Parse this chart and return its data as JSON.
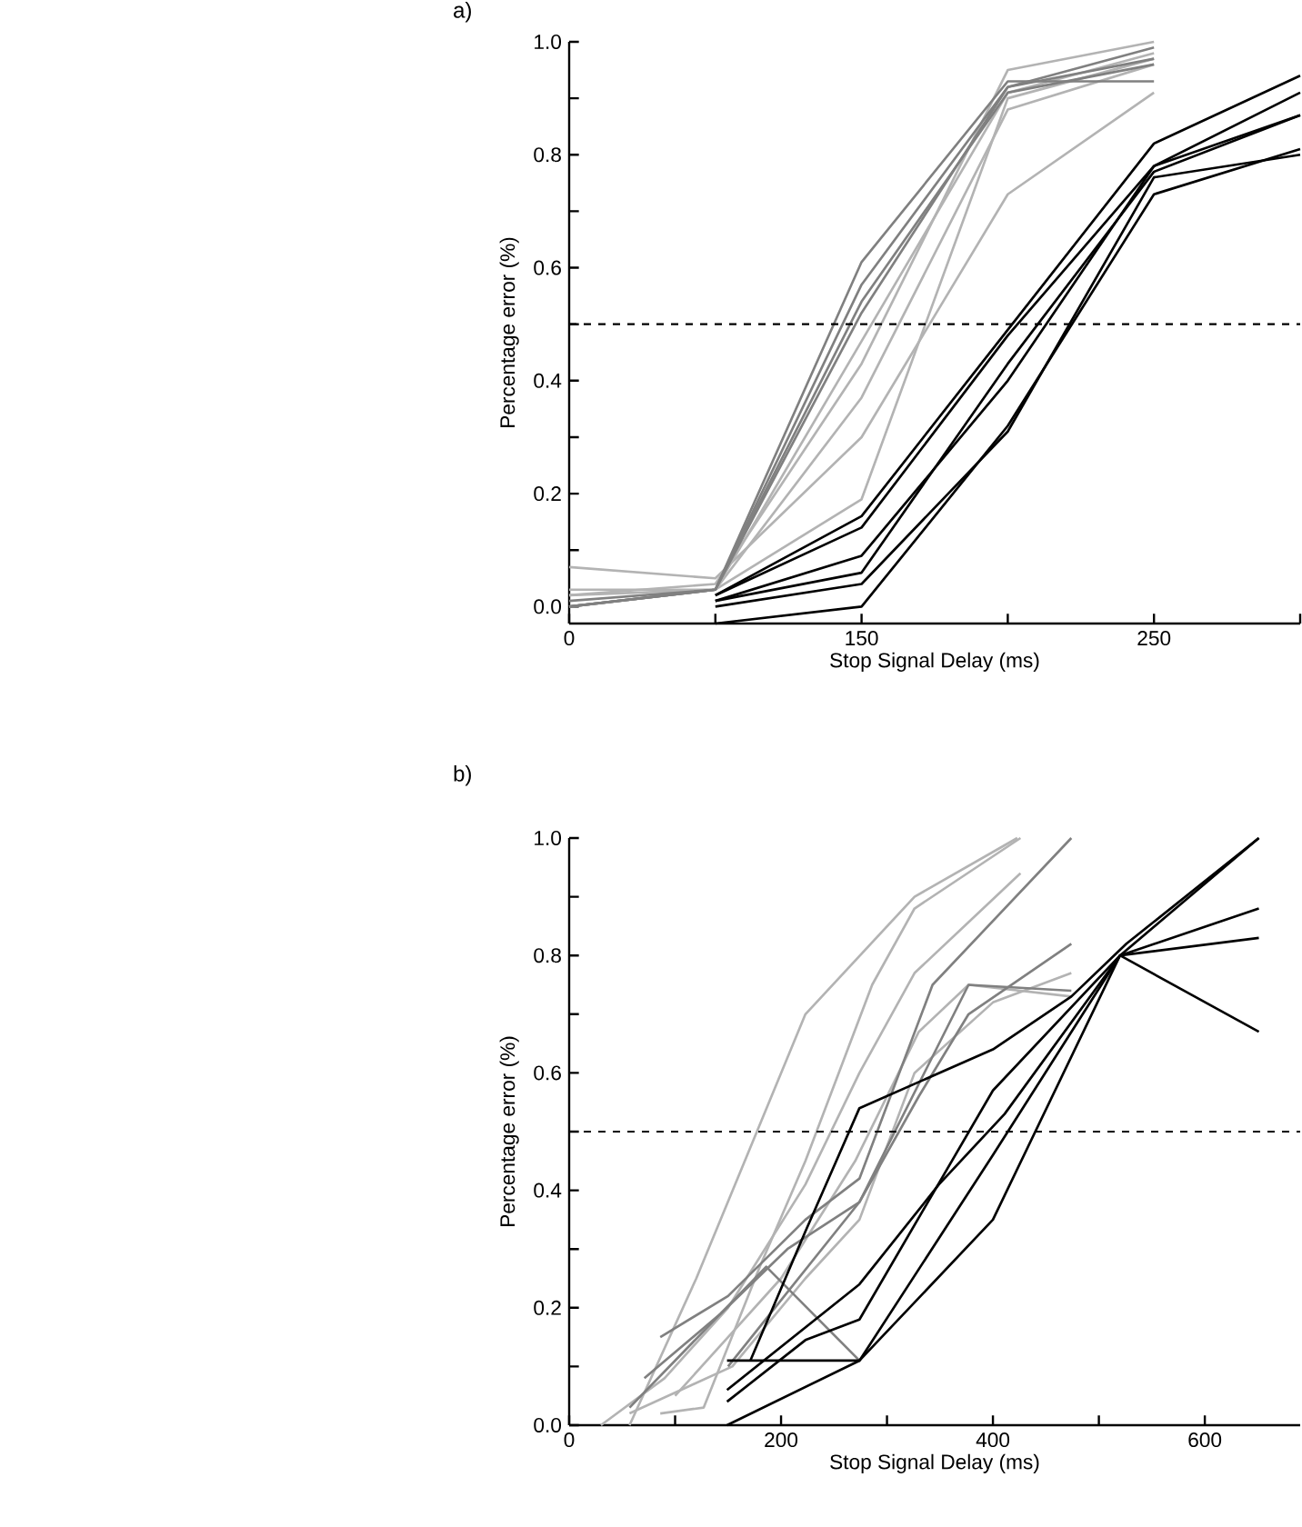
{
  "chart_data": [
    {
      "type": "line",
      "title": "a)",
      "xlabel": "Stop Signal Delay (ms)",
      "ylabel": "Percentage error (%)",
      "categories": [
        "0",
        null,
        "150",
        null,
        "250",
        null
      ],
      "ylim": [
        -0.03,
        1.0
      ],
      "yticks": [
        {
          "value": 0,
          "label": "0.0"
        },
        {
          "value": 0.1,
          "label": null
        },
        0.2,
        {
          "value": 0.3,
          "label": null
        },
        0.4,
        {
          "value": 0.5,
          "label": null
        },
        0.6,
        {
          "value": 0.7,
          "label": null
        },
        0.8,
        {
          "value": 0.9,
          "label": null
        },
        {
          "value": 1.0,
          "label": "1.0"
        }
      ],
      "ref_lines": [
        {
          "axis": "y",
          "value": 0.5,
          "line_style": "dashed",
          "color": "#000000"
        }
      ],
      "series": [
        {
          "color": "#b3b3b3",
          "values": [
            0.02,
            0.03,
            0.37,
            0.88,
            0.96,
            null
          ]
        },
        {
          "color": "#b3b3b3",
          "values": [
            0.07,
            0.05,
            0.3,
            0.73,
            0.91,
            null
          ]
        },
        {
          "color": "#b3b3b3",
          "values": [
            0.02,
            0.04,
            0.43,
            0.95,
            1.0,
            null
          ]
        },
        {
          "color": "#b3b3b3",
          "values": [
            0.0,
            0.03,
            0.47,
            0.91,
            0.98,
            null
          ]
        },
        {
          "color": "#b3b3b3",
          "values": [
            0.03,
            0.03,
            0.19,
            0.9,
            0.97,
            null
          ]
        },
        {
          "color": "#808080",
          "values": [
            0.0,
            0.03,
            0.57,
            0.92,
            0.97,
            null
          ]
        },
        {
          "color": "#808080",
          "values": [
            0.0,
            0.03,
            0.61,
            0.93,
            0.93,
            null
          ]
        },
        {
          "color": "#808080",
          "values": [
            0.01,
            0.03,
            0.52,
            0.92,
            0.99,
            null
          ]
        },
        {
          "color": "#808080",
          "values": [
            0.0,
            0.03,
            0.54,
            0.91,
            0.96,
            null
          ]
        },
        {
          "color": "#000000",
          "values": [
            null,
            0.01,
            0.09,
            0.4,
            0.78,
            0.87
          ]
        },
        {
          "color": "#000000",
          "values": [
            null,
            0.02,
            0.16,
            0.49,
            0.82,
            0.94
          ]
        },
        {
          "color": "#000000",
          "values": [
            null,
            0.02,
            0.14,
            0.48,
            0.78,
            0.91
          ]
        },
        {
          "color": "#000000",
          "values": [
            null,
            -0.03,
            0.0,
            0.32,
            0.73,
            0.81
          ]
        },
        {
          "color": "#000000",
          "values": [
            null,
            0.0,
            0.04,
            0.31,
            0.76,
            0.8
          ]
        },
        {
          "color": "#000000",
          "values": [
            null,
            0.01,
            0.06,
            0.43,
            0.77,
            0.87
          ]
        }
      ]
    },
    {
      "type": "line",
      "title": "b)",
      "xlabel": "Stop Signal Delay (ms)",
      "ylabel": "Percentage error (%)",
      "xlim": [
        0,
        690
      ],
      "xticks": [
        0,
        {
          "value": 100,
          "label": null
        },
        200,
        {
          "value": 300,
          "label": null
        },
        400,
        {
          "value": 500,
          "label": null
        },
        600
      ],
      "ylim": [
        0,
        1.0
      ],
      "yticks": [
        {
          "value": 0,
          "label": "0.0"
        },
        {
          "value": 0.1,
          "label": null
        },
        0.2,
        {
          "value": 0.3,
          "label": null
        },
        0.4,
        {
          "value": 0.5,
          "label": null
        },
        0.6,
        {
          "value": 0.7,
          "label": null
        },
        0.8,
        {
          "value": 0.9,
          "label": null
        },
        {
          "value": 1.0,
          "label": "1.0"
        }
      ],
      "ref_lines": [
        {
          "axis": "y",
          "value": 0.5,
          "line_style": "dashed",
          "color": "#000000"
        }
      ],
      "series": [
        {
          "color": "#b3b3b3",
          "x": [
            30,
            90,
            150,
            223,
            274,
            326,
            426
          ],
          "values": [
            0.0,
            0.08,
            0.2,
            0.41,
            0.6,
            0.77,
            0.94
          ]
        },
        {
          "color": "#b3b3b3",
          "x": [
            57,
            120,
            223,
            326,
            423
          ],
          "values": [
            0.0,
            0.25,
            0.7,
            0.9,
            1.0
          ]
        },
        {
          "color": "#b3b3b3",
          "x": [
            86,
            127,
            180,
            223,
            286,
            326,
            426
          ],
          "values": [
            0.02,
            0.03,
            0.27,
            0.45,
            0.75,
            0.88,
            1.0
          ]
        },
        {
          "color": "#b3b3b3",
          "x": [
            57,
            154,
            223,
            274,
            326,
            400,
            474
          ],
          "values": [
            0.02,
            0.1,
            0.25,
            0.35,
            0.6,
            0.72,
            0.77
          ]
        },
        {
          "color": "#b3b3b3",
          "x": [
            100,
            150,
            200,
            270,
            330,
            377,
            474
          ],
          "values": [
            0.05,
            0.15,
            0.25,
            0.45,
            0.67,
            0.75,
            0.73
          ]
        },
        {
          "color": "#808080",
          "x": [
            71,
            143,
            206,
            274,
            330,
            377,
            474
          ],
          "values": [
            0.08,
            0.19,
            0.3,
            0.38,
            0.56,
            0.7,
            0.82
          ]
        },
        {
          "color": "#808080",
          "x": [
            86,
            150,
            223,
            274,
            343,
            474
          ],
          "values": [
            0.15,
            0.22,
            0.35,
            0.42,
            0.75,
            1.0
          ]
        },
        {
          "color": "#808080",
          "x": [
            57,
            186,
            274
          ],
          "values": [
            0.03,
            0.27,
            0.11
          ]
        },
        {
          "color": "#808080",
          "x": [
            150,
            274,
            377,
            474
          ],
          "values": [
            0.1,
            0.38,
            0.75,
            0.74
          ]
        },
        {
          "color": "#000000",
          "x": [
            149,
            274,
            349,
            411,
            520,
            651
          ],
          "values": [
            0.06,
            0.24,
            0.41,
            0.53,
            0.8,
            0.88
          ]
        },
        {
          "color": "#000000",
          "x": [
            149,
            274,
            400,
            520,
            651
          ],
          "values": [
            0.0,
            0.11,
            0.35,
            0.8,
            1.0
          ]
        },
        {
          "color": "#000000",
          "x": [
            149,
            274,
            400,
            520,
            651
          ],
          "values": [
            0.11,
            0.11,
            0.46,
            0.8,
            0.67
          ]
        },
        {
          "color": "#000000",
          "x": [
            171,
            223,
            274,
            400,
            474,
            526,
            651
          ],
          "values": [
            0.11,
            0.33,
            0.54,
            0.64,
            0.73,
            0.82,
            1.0
          ]
        },
        {
          "color": "#000000",
          "x": [
            149,
            223,
            274,
            400,
            520,
            651
          ],
          "values": [
            0.04,
            0.145,
            0.18,
            0.57,
            0.8,
            0.83
          ]
        }
      ]
    }
  ]
}
